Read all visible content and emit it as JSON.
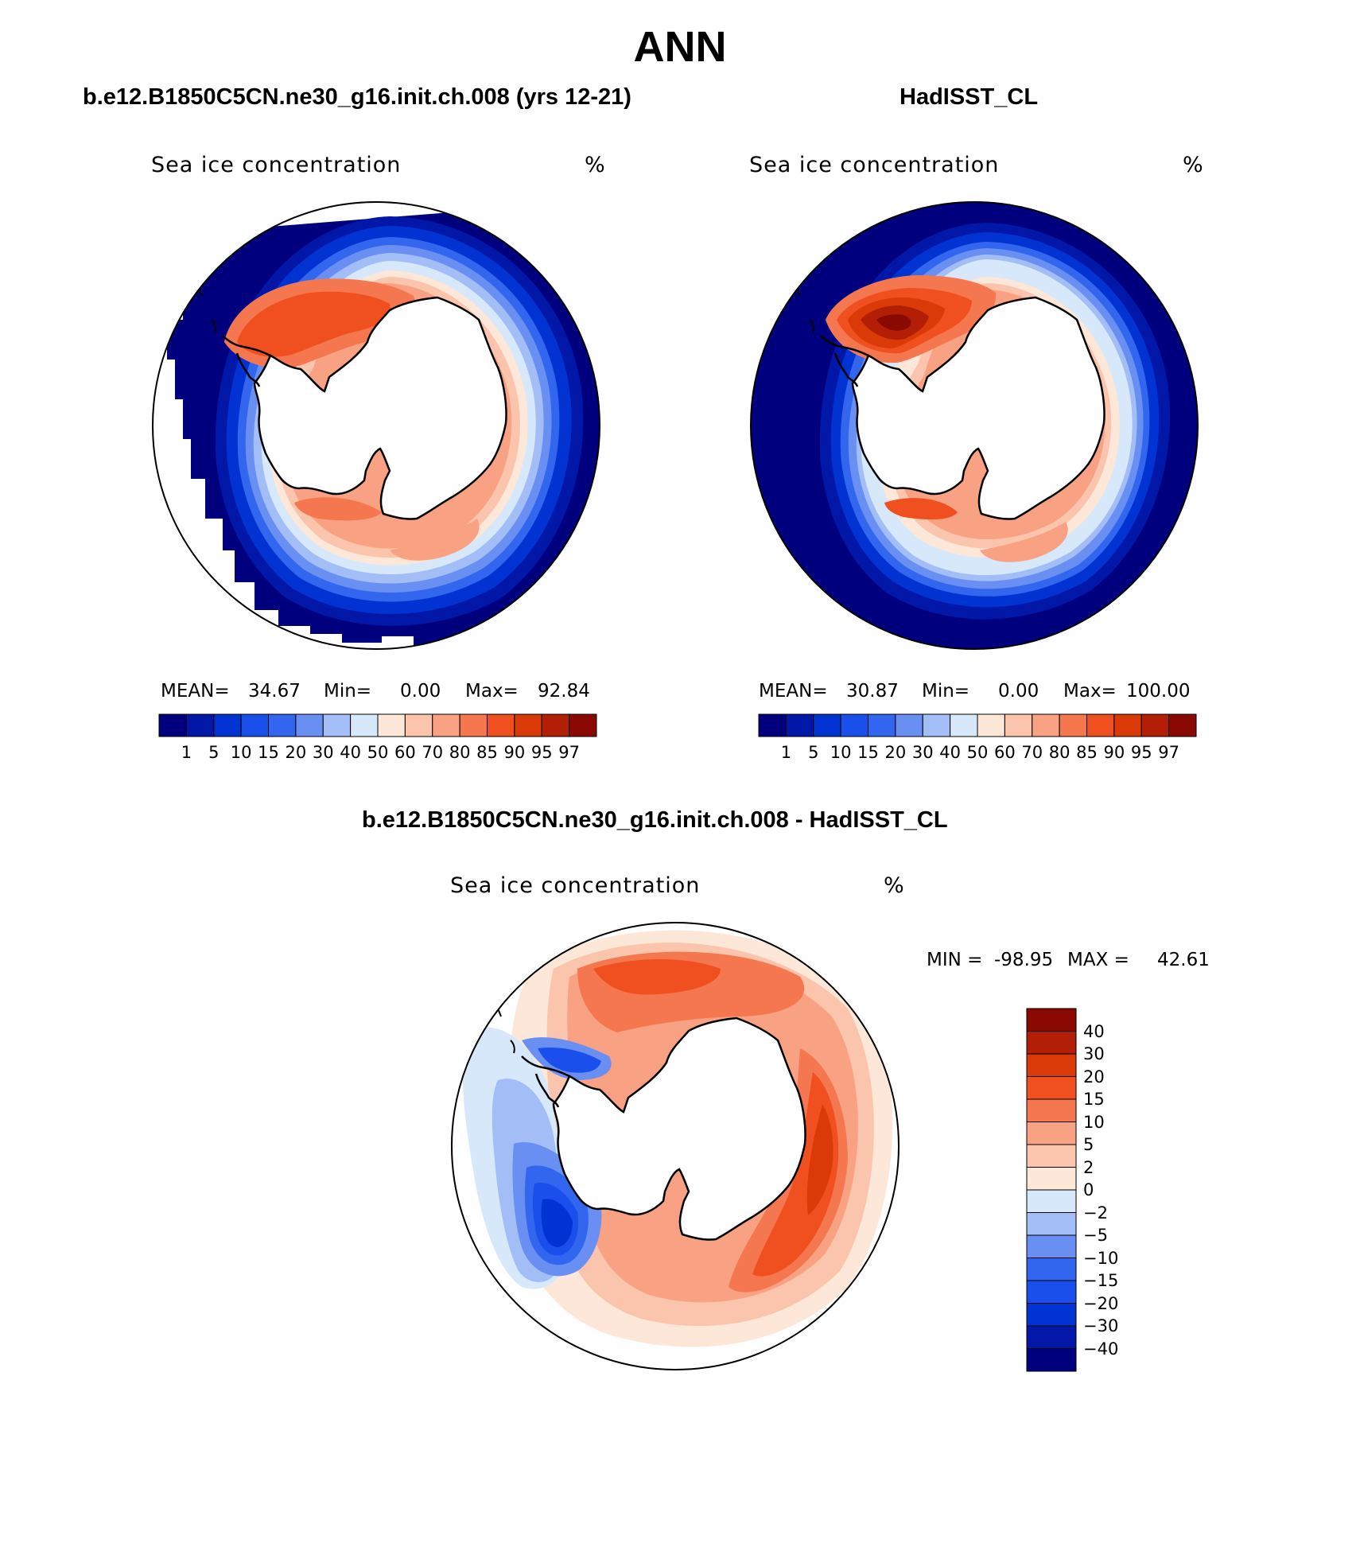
{
  "figure": {
    "title": "ANN",
    "panels": [
      {
        "id": "model",
        "header": "b.e12.B1850C5CN.ne30_g16.init.ch.008 (yrs 12-21)",
        "variable": "Sea ice concentration",
        "units": "%",
        "stats": {
          "mean_label": "MEAN=",
          "mean": "34.67",
          "min_label": "Min=",
          "min": "0.00",
          "max_label": "Max=",
          "max": "92.84"
        }
      },
      {
        "id": "obs",
        "header": "HadISST_CL",
        "variable": "Sea ice concentration",
        "units": "%",
        "stats": {
          "mean_label": "MEAN=",
          "mean": "30.87",
          "min_label": "Min=",
          "min": "0.00",
          "max_label": "Max=",
          "max": "100.00"
        }
      },
      {
        "id": "diff",
        "header": "b.e12.B1850C5CN.ne30_g16.init.ch.008 - HadISST_CL",
        "variable": "Sea ice concentration",
        "units": "%",
        "stats": {
          "min_label": "MIN =",
          "min": "-98.95",
          "max_label": "MAX =",
          "max": "42.61"
        }
      }
    ],
    "colorbar_main": {
      "levels": [
        "1",
        "5",
        "10",
        "15",
        "20",
        "30",
        "40",
        "50",
        "60",
        "70",
        "80",
        "85",
        "90",
        "95",
        "97"
      ],
      "colors": [
        "#00007f",
        "#0017a8",
        "#0033d1",
        "#1a4fec",
        "#3366ee",
        "#6a8ff2",
        "#a3bef7",
        "#d6e8fa",
        "#fde7d9",
        "#fbc4ad",
        "#f8a183",
        "#f5774f",
        "#f0501f",
        "#d93a07",
        "#b21e06",
        "#8a0a03"
      ]
    },
    "colorbar_diff": {
      "levels": [
        "40",
        "30",
        "20",
        "15",
        "10",
        "5",
        "2",
        "0",
        "−2",
        "−5",
        "−10",
        "−15",
        "−20",
        "−30",
        "−40"
      ],
      "colors": [
        "#8a0a03",
        "#b21e06",
        "#d93a07",
        "#f0501f",
        "#f5774f",
        "#f8a183",
        "#fbc4ad",
        "#fde7d9",
        "#d6e8fa",
        "#a3bef7",
        "#6a8ff2",
        "#3366ee",
        "#1a4fec",
        "#0033d1",
        "#0017a8",
        "#00007f"
      ]
    }
  }
}
